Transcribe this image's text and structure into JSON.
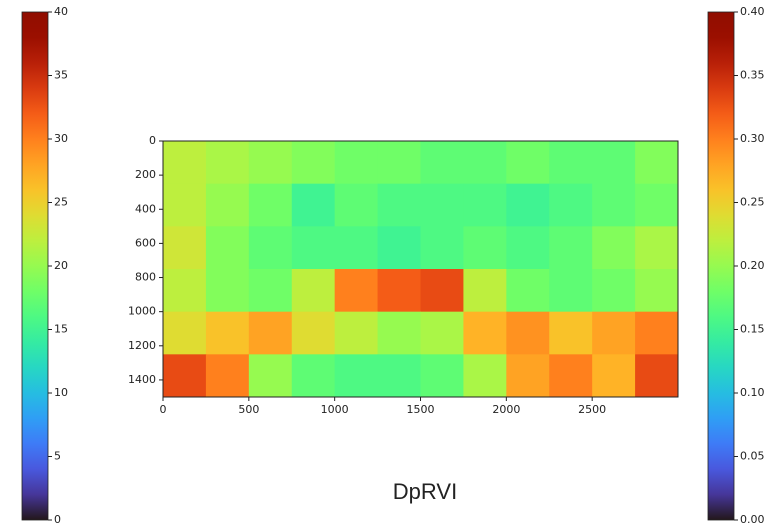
{
  "chart_data": {
    "type": "heatmap",
    "label": "DpRVI",
    "cmap": "turbo",
    "zlim": [
      0,
      0.4
    ],
    "xlim": [
      0,
      3000
    ],
    "ylim": [
      1500,
      0
    ],
    "xticks": [
      0,
      500,
      1000,
      1500,
      2000,
      2500
    ],
    "yticks": [
      0,
      200,
      400,
      600,
      800,
      1000,
      1200,
      1400
    ],
    "z": [
      [
        0.22,
        0.21,
        0.2,
        0.19,
        0.18,
        0.18,
        0.17,
        0.17,
        0.18,
        0.17,
        0.17,
        0.19
      ],
      [
        0.22,
        0.2,
        0.18,
        0.15,
        0.17,
        0.16,
        0.16,
        0.16,
        0.15,
        0.16,
        0.17,
        0.18
      ],
      [
        0.23,
        0.19,
        0.17,
        0.16,
        0.16,
        0.15,
        0.16,
        0.17,
        0.16,
        0.17,
        0.19,
        0.21
      ],
      [
        0.22,
        0.19,
        0.18,
        0.22,
        0.3,
        0.32,
        0.33,
        0.22,
        0.18,
        0.17,
        0.18,
        0.2
      ],
      [
        0.24,
        0.26,
        0.28,
        0.24,
        0.22,
        0.2,
        0.21,
        0.27,
        0.29,
        0.26,
        0.28,
        0.3
      ],
      [
        0.33,
        0.3,
        0.2,
        0.17,
        0.16,
        0.16,
        0.17,
        0.21,
        0.28,
        0.3,
        0.27,
        0.33
      ]
    ],
    "colorbars": [
      {
        "lim": [
          0,
          40
        ],
        "ticks": [
          0,
          5,
          10,
          15,
          20,
          25,
          30,
          35,
          40
        ]
      },
      {
        "lim": [
          0,
          0.4
        ],
        "ticks": [
          {
            "value": 0,
            "label": "0.00"
          },
          {
            "value": 0.05,
            "label": "0.05"
          },
          {
            "value": 0.1,
            "label": "0.10"
          },
          {
            "value": 0.15,
            "label": "0.15"
          },
          {
            "value": 0.2,
            "label": "0.20"
          },
          {
            "value": 0.25,
            "label": "0.25"
          },
          {
            "value": 0.3,
            "label": "0.30"
          },
          {
            "value": 0.35,
            "label": "0.35"
          },
          {
            "value": 0.4,
            "label": "0.40"
          }
        ]
      }
    ]
  }
}
